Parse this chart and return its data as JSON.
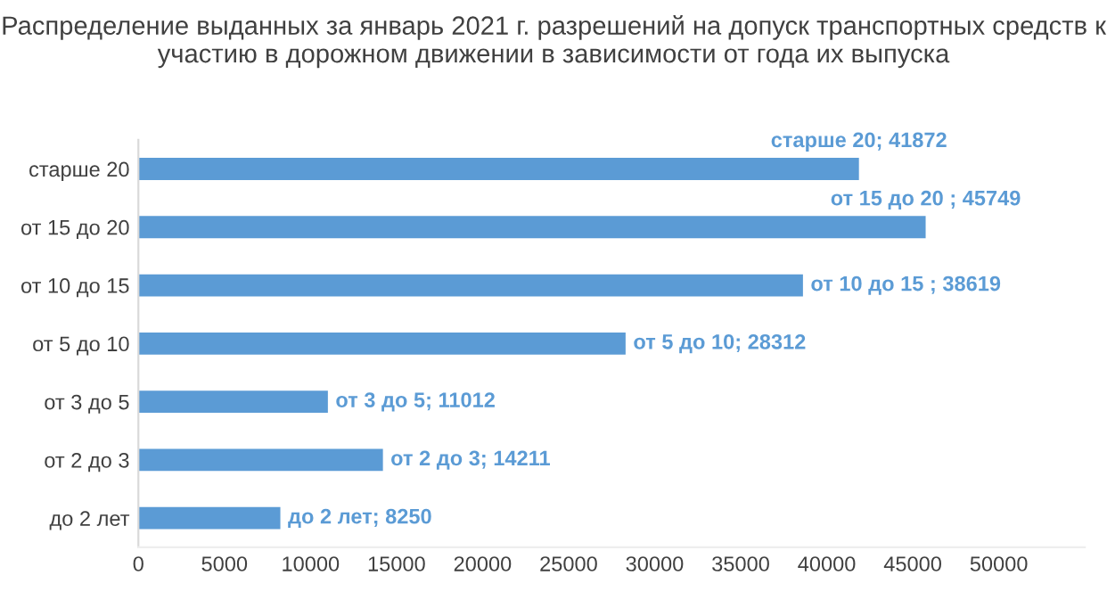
{
  "chart_data": {
    "type": "bar",
    "orientation": "horizontal",
    "title": "Распределение выданных за январь 2021 г. разрешений на допуск транспортных средств к участию в дорожном движении в зависимости от года их выпуска",
    "categories": [
      "старше 20",
      "от 15 до 20",
      "от 10 до 15",
      "от 5 до 10",
      "от 3 до 5",
      "от 2 до 3",
      "до 2 лет"
    ],
    "values": [
      41872,
      45749,
      38619,
      28312,
      11012,
      14211,
      8250
    ],
    "value_labels": [
      "старше 20; 41872",
      "от 15 до 20 ; 45749",
      "от 10 до 15 ; 38619",
      "от 5 до 10; 28312",
      "от 3 до 5; 11012",
      "от 2 до 3; 14211",
      "до 2 лет; 8250"
    ],
    "color": "#5b9bd5",
    "xlim": [
      0,
      55000
    ],
    "xticks": [
      0,
      5000,
      10000,
      15000,
      20000,
      25000,
      30000,
      35000,
      40000,
      45000,
      50000
    ],
    "grid": false,
    "legend": false
  }
}
